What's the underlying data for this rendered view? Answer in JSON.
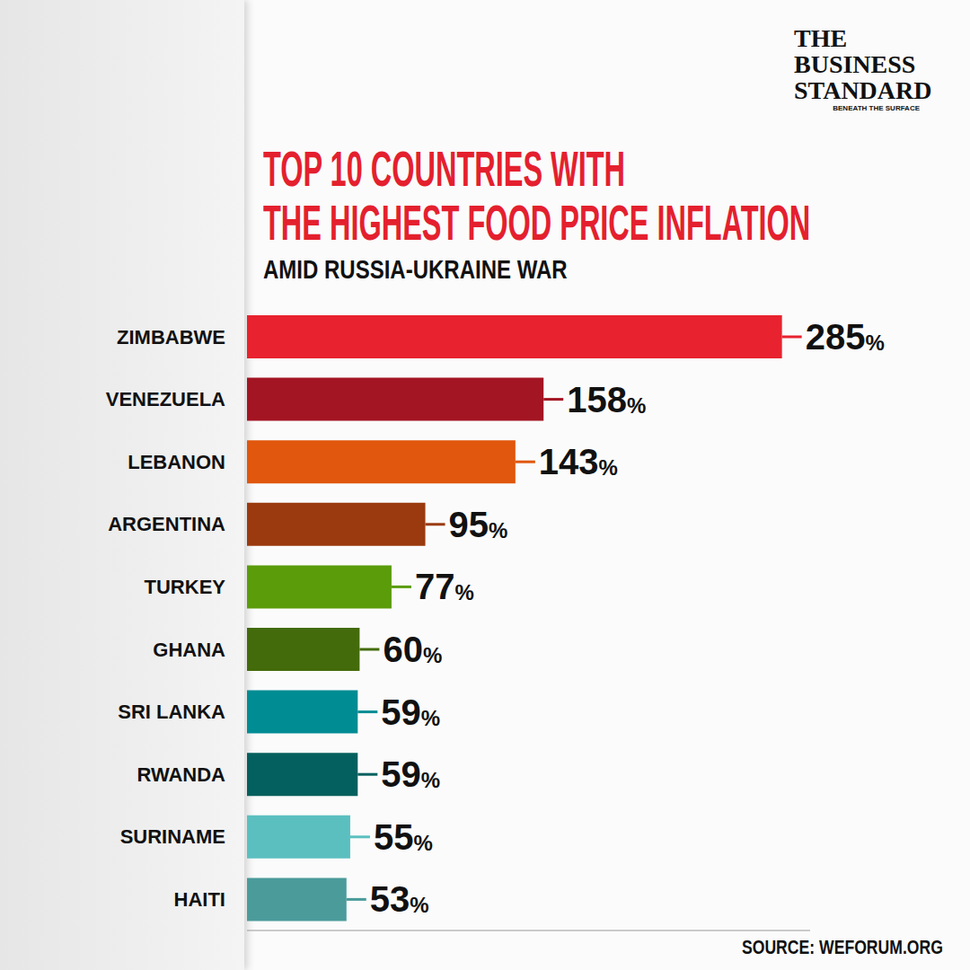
{
  "chart_data": {
    "type": "bar",
    "title": "TOP 10 COUNTRIES WITH\nTHE HIGHEST FOOD PRICE INFLATION",
    "subtitle": "AMID RUSSIA-UKRAINE WAR",
    "categories": [
      "ZIMBABWE",
      "VENEZUELA",
      "LEBANON",
      "ARGENTINA",
      "TURKEY",
      "GHANA",
      "SRI LANKA",
      "RWANDA",
      "SURINAME",
      "HAITI"
    ],
    "values": [
      285,
      158,
      143,
      95,
      77,
      60,
      59,
      59,
      55,
      53
    ],
    "value_labels": [
      "285%",
      "158%",
      "143%",
      "95%",
      "77%",
      "60%",
      "59%",
      "59%",
      "55%",
      "53%"
    ],
    "colors": [
      "#e8222e",
      "#a31523",
      "#e0570d",
      "#9a3a0e",
      "#5a9c0a",
      "#436b0b",
      "#008c93",
      "#04605e",
      "#5bbfc0",
      "#4a9b9a"
    ],
    "orientation": "horizontal",
    "data_labels": true,
    "tick_labels": "y",
    "grid": false,
    "xlim": [
      0,
      300
    ],
    "source": "SOURCE: WEFORUM.ORG",
    "logo": "THE BUSINESS STANDARD",
    "tagline": "BENEATH THE SURFACE"
  }
}
